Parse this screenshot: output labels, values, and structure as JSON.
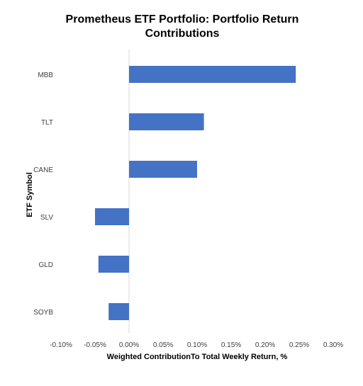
{
  "chart_data": {
    "type": "bar",
    "orientation": "horizontal",
    "title_lines": [
      "Prometheus ETF Portfolio: Portfolio Return",
      "Contributions"
    ],
    "xlabel": "Weighted ContributionTo Total Weekly Return, %",
    "ylabel": "ETF Symbol",
    "categories": [
      "MBB",
      "TLT",
      "CANE",
      "SLV",
      "GLD",
      "SOYB"
    ],
    "values": [
      0.245,
      0.11,
      0.1,
      -0.05,
      -0.045,
      -0.03
    ],
    "xlim": [
      -0.1,
      0.3
    ],
    "xticks": [
      -0.1,
      -0.05,
      0.0,
      0.05,
      0.1,
      0.15,
      0.2,
      0.25,
      0.3
    ],
    "xtick_labels": [
      "-0.10%",
      "-0.05%",
      "0.00%",
      "0.05%",
      "0.10%",
      "0.15%",
      "0.20%",
      "0.25%",
      "0.30%"
    ],
    "grid": false,
    "legend": "none",
    "bar_color": "#4472C4",
    "zero_line_color": "#D9D9D9"
  }
}
